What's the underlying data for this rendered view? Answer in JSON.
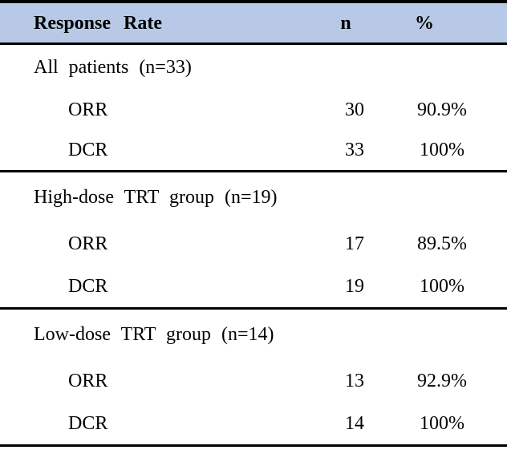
{
  "table": {
    "header": {
      "response_rate": "Response Rate",
      "n": "n",
      "percent": "%"
    },
    "sections": [
      {
        "label": "All patients (n=33)",
        "rows": [
          {
            "metric": "ORR",
            "n": 30,
            "percent": "90.9%"
          },
          {
            "metric": "DCR",
            "n": 33,
            "percent": "100%"
          }
        ]
      },
      {
        "label": "High-dose TRT group (n=19)",
        "rows": [
          {
            "metric": "ORR",
            "n": 17,
            "percent": "89.5%"
          },
          {
            "metric": "DCR",
            "n": 19,
            "percent": "100%"
          }
        ]
      },
      {
        "label": "Low-dose TRT group (n=14)",
        "rows": [
          {
            "metric": "ORR",
            "n": 13,
            "percent": "92.9%"
          },
          {
            "metric": "DCR",
            "n": 14,
            "percent": "100%"
          }
        ]
      }
    ]
  },
  "colors": {
    "header_background": "#b7c9e6",
    "border": "#000000",
    "text": "#000000",
    "page_background": "#ffffff"
  }
}
